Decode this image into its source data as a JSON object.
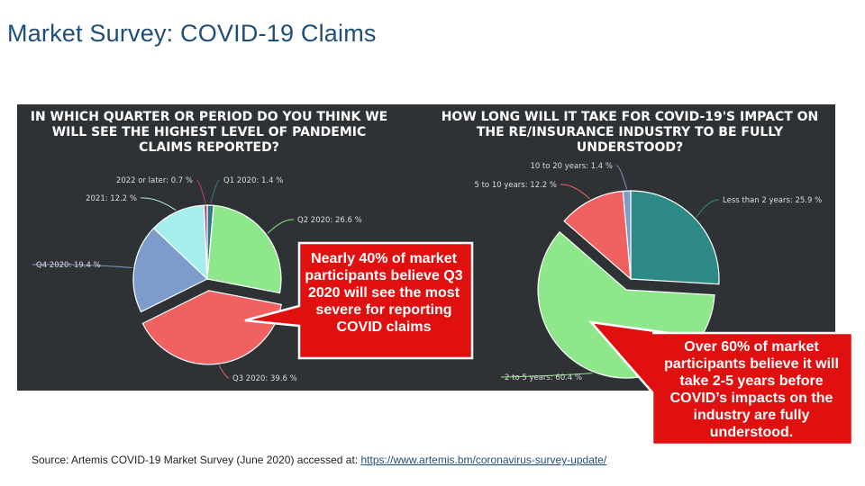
{
  "title": "Market Survey: COVID-19 Claims",
  "chart_data": [
    {
      "type": "pie",
      "title": "IN WHICH QUARTER OR PERIOD DO YOU THINK WE WILL SEE THE HIGHEST LEVEL OF PANDEMIC CLAIMS REPORTED?",
      "slices": [
        {
          "label": "Q1 2020: 1.4 %",
          "value": 1.4,
          "color": "#2a7a86"
        },
        {
          "label": "Q2 2020: 26.6 %",
          "value": 26.6,
          "color": "#8ee88b"
        },
        {
          "label": "Q3 2020: 39.6 %",
          "value": 39.6,
          "color": "#f06262"
        },
        {
          "label": "Q4 2020: 19.4 %",
          "value": 19.4,
          "color": "#7d9ccc"
        },
        {
          "label": "2021: 12.2 %",
          "value": 12.2,
          "color": "#a6eeee"
        },
        {
          "label": "2022 or later: 0.7 %",
          "value": 0.7,
          "color": "#b8417d"
        }
      ],
      "exploded": "Q3 2020: 39.6 %"
    },
    {
      "type": "pie",
      "title": "HOW LONG WILL IT TAKE FOR COVID-19'S IMPACT ON THE RE/INSURANCE INDUSTRY TO BE FULLY UNDERSTOOD?",
      "slices": [
        {
          "label": "Less than 2 years: 25.9 %",
          "value": 25.9,
          "color": "#2e8a86"
        },
        {
          "label": "2 to 5 years: 60.4 %",
          "value": 60.4,
          "color": "#8ee88b"
        },
        {
          "label": "5 to 10 years: 12.2 %",
          "value": 12.2,
          "color": "#f06262"
        },
        {
          "label": "10 to 20 years: 1.4 %",
          "value": 1.4,
          "color": "#7d9ccc"
        }
      ],
      "exploded": "2 to 5 years: 60.4 %"
    }
  ],
  "callouts": {
    "left": "Nearly 40% of market participants believe Q3 2020 will see the most severe for reporting COVID claims",
    "right": "Over 60% of market participants believe it will take 2-5 years before COVID’s impacts on the industry are fully understood."
  },
  "source": {
    "text": "Source: Artemis COVID-19 Market Survey (June 2020) accessed at: ",
    "link": "https://www.artemis.bm/coronavirus-survey-update/"
  },
  "colors": {
    "panel_bg": "#2f3235",
    "callout_red": "#e01010",
    "title_blue": "#1f4e79"
  }
}
